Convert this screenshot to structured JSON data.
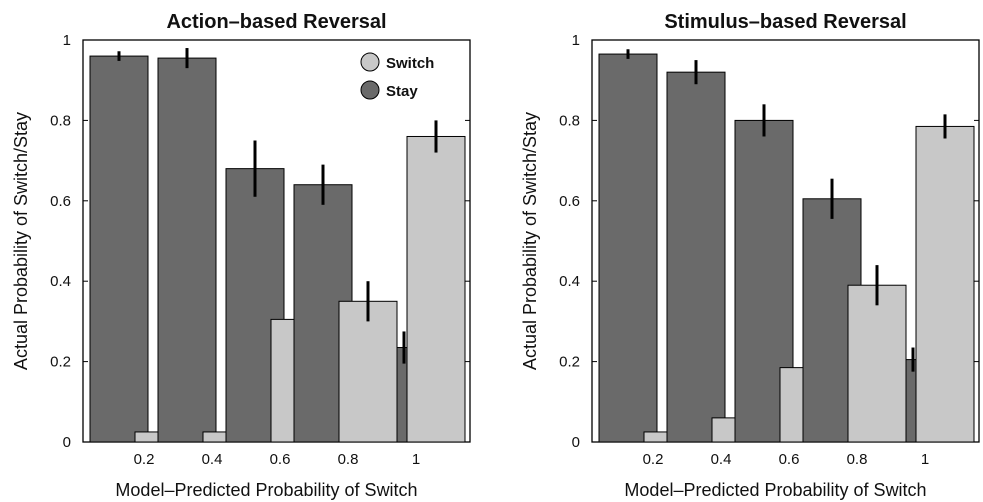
{
  "chart_data": [
    {
      "type": "bar",
      "title": "Action–based Reversal",
      "xlabel": "Model–Predicted Probability of Switch",
      "ylabel": "Actual Probability of Switch/Stay",
      "categories": [
        "0.2",
        "0.4",
        "0.6",
        "0.8",
        "1"
      ],
      "ylim": [
        0,
        1
      ],
      "yticks": [
        "0",
        "0.2",
        "0.4",
        "0.6",
        "0.8",
        "1"
      ],
      "legend_position": "top-right",
      "series": [
        {
          "name": "Stay",
          "color": "#6a6a6a",
          "values": [
            0.96,
            0.955,
            0.68,
            0.64,
            0.235
          ],
          "errors": [
            0.012,
            0.025,
            0.07,
            0.05,
            0.04
          ]
        },
        {
          "name": "Switch",
          "color": "#c8c8c8",
          "values": [
            0.025,
            0.025,
            0.305,
            0.35,
            0.76
          ],
          "errors": [
            0.01,
            0.015,
            0.07,
            0.05,
            0.04
          ]
        }
      ]
    },
    {
      "type": "bar",
      "title": "Stimulus–based Reversal",
      "xlabel": "Model–Predicted Probability of Switch",
      "ylabel": "Actual Probability of Switch/Stay",
      "categories": [
        "0.2",
        "0.4",
        "0.6",
        "0.8",
        "1"
      ],
      "ylim": [
        0,
        1
      ],
      "yticks": [
        "0",
        "0.2",
        "0.4",
        "0.6",
        "0.8",
        "1"
      ],
      "series": [
        {
          "name": "Stay",
          "color": "#6a6a6a",
          "values": [
            0.965,
            0.92,
            0.8,
            0.605,
            0.205
          ],
          "errors": [
            0.012,
            0.03,
            0.04,
            0.05,
            0.03
          ]
        },
        {
          "name": "Switch",
          "color": "#c8c8c8",
          "values": [
            0.025,
            0.06,
            0.185,
            0.39,
            0.785
          ],
          "errors": [
            0.01,
            0.025,
            0.04,
            0.05,
            0.03
          ]
        }
      ]
    }
  ]
}
